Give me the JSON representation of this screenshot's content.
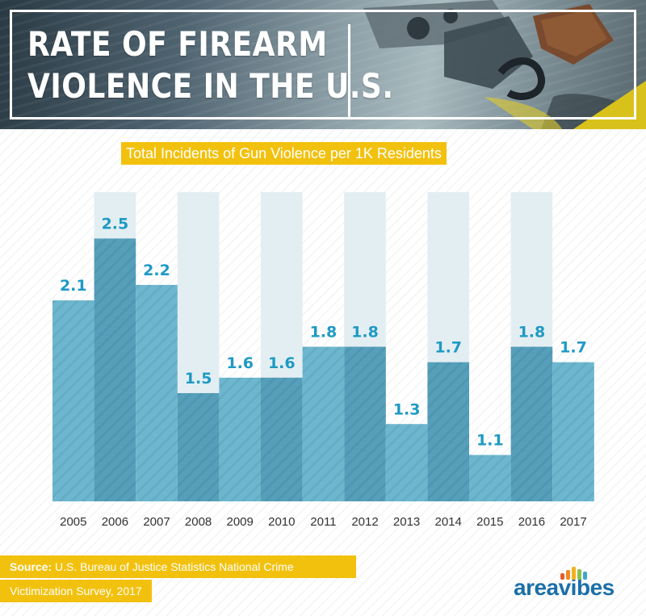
{
  "header": {
    "title_line_1": "RATE OF FIREARM",
    "title_line_2": "VIOLENCE IN THE U.S."
  },
  "colors": {
    "bar": "#6cb7cf",
    "bar_dark": "#559fbb",
    "column_bg": "#e3eef2",
    "label": "#1e9ac4",
    "accent_yellow": "#f2c10e",
    "brand_blue": "#1b6fa8"
  },
  "chart_data": {
    "type": "bar",
    "title": "Total Incidents of Gun Violence per 1K Residents",
    "categories": [
      "2005",
      "2006",
      "2007",
      "2008",
      "2009",
      "2010",
      "2011",
      "2012",
      "2013",
      "2014",
      "2015",
      "2016",
      "2017"
    ],
    "values": [
      2.1,
      2.5,
      2.2,
      1.5,
      1.6,
      1.6,
      1.8,
      1.8,
      1.3,
      1.7,
      1.1,
      1.8,
      1.7
    ],
    "value_labels": [
      "2.1",
      "2.5",
      "2.2",
      "1.5",
      "1.6",
      "1.6",
      "1.8",
      "1.8",
      "1.3",
      "1.7",
      "1.1",
      "1.8",
      "1.7"
    ],
    "xlabel": "",
    "ylabel": "",
    "ylim": [
      0.8,
      2.8
    ],
    "grid": false,
    "legend": "none"
  },
  "footer": {
    "source_label": "Source:",
    "source_text_1": "U.S. Bureau of Justice Statistics National Crime",
    "source_text_2": "Victimization Survey, 2017",
    "logo_text": "areavibes"
  }
}
